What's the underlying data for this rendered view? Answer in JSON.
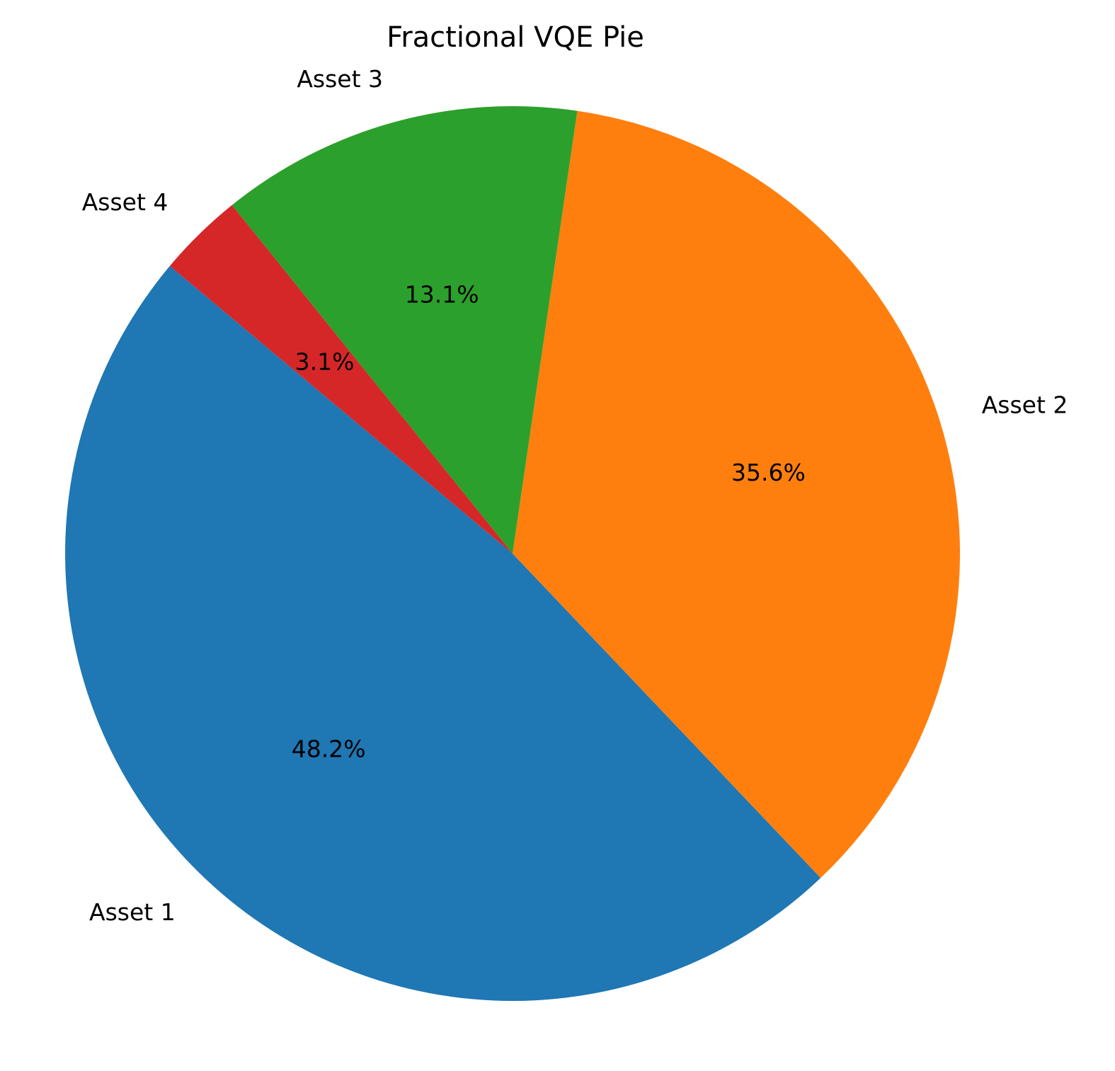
{
  "chart_data": {
    "type": "pie",
    "title": "Fractional VQE Pie",
    "categories": [
      "Asset 1",
      "Asset 2",
      "Asset 3",
      "Asset 4"
    ],
    "values": [
      48.2,
      35.6,
      13.1,
      3.1
    ],
    "value_labels": [
      "48.2%",
      "35.6%",
      "13.1%",
      "3.1%"
    ],
    "colors": [
      "#1f77b4",
      "#ff7f0e",
      "#2ca02c",
      "#d62728"
    ],
    "start_angle_deg": 140,
    "direction": "counterclockwise",
    "legend": "none"
  }
}
